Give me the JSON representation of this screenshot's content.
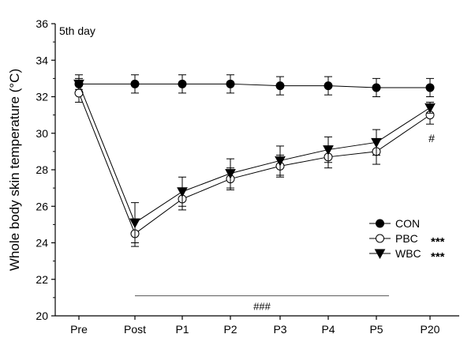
{
  "chart_data": {
    "type": "line",
    "title": "",
    "panel_label": "5th day",
    "xlabel": "",
    "ylabel": "Whole body skin temperature (°C)",
    "categories": [
      "Pre",
      "Post",
      "P1",
      "P2",
      "P3",
      "P4",
      "P5",
      "P20"
    ],
    "ylim": [
      20,
      36
    ],
    "yticks": [
      20,
      22,
      24,
      26,
      28,
      30,
      32,
      34,
      36
    ],
    "grid": false,
    "legend_position": "bottom-right",
    "series": [
      {
        "name": "CON",
        "marker": "filled-circle",
        "significance": "",
        "values": [
          32.7,
          32.7,
          32.7,
          32.7,
          32.6,
          32.6,
          32.5,
          32.5
        ],
        "errors": [
          0.5,
          0.5,
          0.5,
          0.5,
          0.5,
          0.5,
          0.5,
          0.5
        ]
      },
      {
        "name": "PBC",
        "marker": "open-circle",
        "significance": "***",
        "values": [
          32.2,
          24.5,
          26.4,
          27.5,
          28.2,
          28.7,
          29.0,
          31.0
        ],
        "errors": [
          0.5,
          0.7,
          0.6,
          0.6,
          0.6,
          0.6,
          0.7,
          0.5
        ]
      },
      {
        "name": "WBC",
        "marker": "filled-triangle-down",
        "significance": "***",
        "values": [
          32.7,
          25.1,
          26.8,
          27.8,
          28.5,
          29.1,
          29.5,
          31.4
        ],
        "errors": [
          0.3,
          1.1,
          0.8,
          0.8,
          0.8,
          0.7,
          0.7,
          0.3
        ]
      }
    ],
    "annotations": [
      {
        "text": "###",
        "type": "range-bar",
        "from": "Post",
        "to": "P5",
        "y": 21.1
      },
      {
        "text": "#",
        "type": "point",
        "category": "P20",
        "y": 30.0
      }
    ]
  }
}
